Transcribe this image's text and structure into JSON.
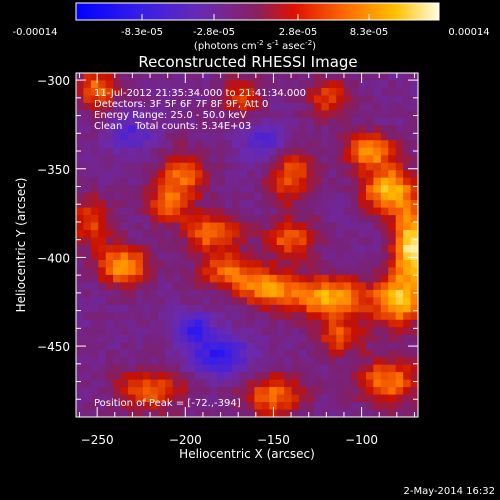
{
  "colorbar": {
    "tick_labels": [
      "-0.00014",
      "-8.3e-05",
      "-2.8e-05",
      "2.8e-05",
      "8.3e-05",
      "0.00014"
    ],
    "units_prefix": "(photons cm",
    "units_sup1": "-2",
    "units_mid": " s",
    "units_sup2": "-1",
    "units_suffix": " asec",
    "units_sup3": "-2",
    "units_close": ")"
  },
  "title": "Reconstructed RHESSI Image",
  "annotations": {
    "line1": "11-Jul-2012 21:35:34.000 to 21:41:34.000",
    "line2": "Detectors: 3F 5F 6F 7F 8F 9F, Att 0",
    "line3": "Energy Range: 25.0 - 50.0 keV",
    "line4": "Clean    Total counts: 5.34E+03",
    "peak": "Position of Peak = [-72.,-394]"
  },
  "footer": {
    "date": "2-May-2014 16:32"
  },
  "colors": {
    "colormap": [
      "#0000ff",
      "#5030c8",
      "#7a2a9a",
      "#c01a10",
      "#ff3000",
      "#ff8c00",
      "#ffc000",
      "#ffffd0"
    ],
    "background": "#000000",
    "axis": "#ffffff"
  },
  "chart_data": {
    "type": "heatmap",
    "title": "Reconstructed RHESSI Image",
    "xlabel": "Heliocentric X (arcsec)",
    "ylabel": "Heliocentric Y (arcsec)",
    "x_ticks": [
      -250,
      -200,
      -150,
      -100
    ],
    "y_ticks": [
      -300,
      -350,
      -400,
      -450
    ],
    "xlim": [
      -262,
      -68
    ],
    "ylim": [
      -490,
      -296
    ],
    "value_range": [
      -0.00014,
      0.00014
    ],
    "grid": false,
    "peak": {
      "x": -72,
      "y": -394
    },
    "sources": [
      {
        "x": -72,
        "y": -394,
        "sx": 7,
        "sy": 16,
        "amp": 1.0
      },
      {
        "x": -85,
        "y": -362,
        "sx": 10,
        "sy": 9,
        "amp": 0.85
      },
      {
        "x": -95,
        "y": -340,
        "sx": 10,
        "sy": 7,
        "amp": 0.7
      },
      {
        "x": -80,
        "y": -425,
        "sx": 10,
        "sy": 10,
        "amp": 0.8
      },
      {
        "x": -118,
        "y": -423,
        "sx": 14,
        "sy": 8,
        "amp": 0.85
      },
      {
        "x": -152,
        "y": -418,
        "sx": 11,
        "sy": 7,
        "amp": 0.75
      },
      {
        "x": -175,
        "y": -408,
        "sx": 12,
        "sy": 7,
        "amp": 0.6
      },
      {
        "x": -140,
        "y": -390,
        "sx": 10,
        "sy": 8,
        "amp": 0.55
      },
      {
        "x": -140,
        "y": -354,
        "sx": 9,
        "sy": 11,
        "amp": 0.55
      },
      {
        "x": -202,
        "y": -354,
        "sx": 10,
        "sy": 10,
        "amp": 0.55
      },
      {
        "x": -185,
        "y": -386,
        "sx": 11,
        "sy": 7,
        "amp": 0.65
      },
      {
        "x": -210,
        "y": -370,
        "sx": 9,
        "sy": 7,
        "amp": 0.5
      },
      {
        "x": -235,
        "y": -405,
        "sx": 10,
        "sy": 8,
        "amp": 0.75
      },
      {
        "x": -253,
        "y": -380,
        "sx": 8,
        "sy": 10,
        "amp": 0.5
      },
      {
        "x": -250,
        "y": -305,
        "sx": 8,
        "sy": 8,
        "amp": 0.6
      },
      {
        "x": -168,
        "y": -310,
        "sx": 8,
        "sy": 8,
        "amp": 0.45
      },
      {
        "x": -118,
        "y": -310,
        "sx": 9,
        "sy": 8,
        "amp": 0.45
      },
      {
        "x": -112,
        "y": -445,
        "sx": 9,
        "sy": 7,
        "amp": 0.5
      },
      {
        "x": -220,
        "y": -475,
        "sx": 14,
        "sy": 8,
        "amp": 0.55
      },
      {
        "x": -150,
        "y": -478,
        "sx": 12,
        "sy": 8,
        "amp": 0.6
      },
      {
        "x": -85,
        "y": -470,
        "sx": 12,
        "sy": 9,
        "amp": 0.65
      },
      {
        "x": -195,
        "y": -440,
        "sx": 8,
        "sy": 6,
        "amp": -0.5
      },
      {
        "x": -180,
        "y": -455,
        "sx": 12,
        "sy": 8,
        "amp": -0.6
      },
      {
        "x": -230,
        "y": -330,
        "sx": 9,
        "sy": 8,
        "amp": -0.35
      },
      {
        "x": -155,
        "y": -335,
        "sx": 10,
        "sy": 8,
        "amp": -0.35
      }
    ]
  }
}
